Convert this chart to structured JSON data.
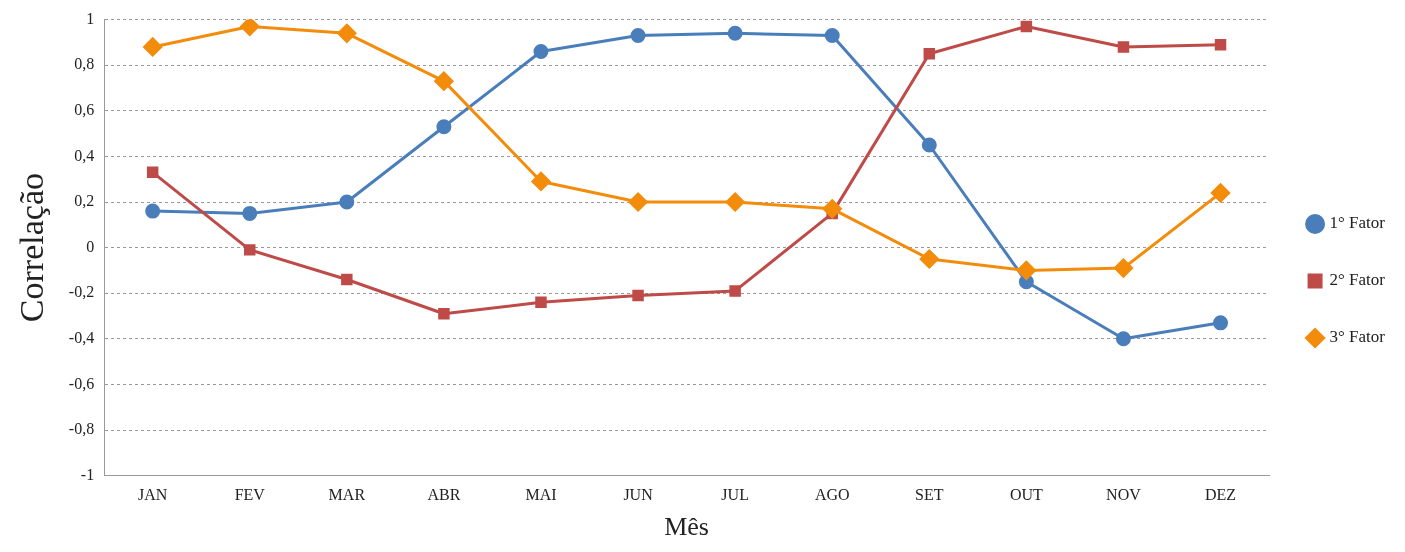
{
  "chart_data": {
    "type": "line",
    "xlabel": "Mês",
    "ylabel": "Correlação",
    "categories": [
      "JAN",
      "FEV",
      "MAR",
      "ABR",
      "MAI",
      "JUN",
      "JUL",
      "AGO",
      "SET",
      "OUT",
      "NOV",
      "DEZ"
    ],
    "series": [
      {
        "name": "1° Fator",
        "color": "#4a7ebb",
        "marker": "circle",
        "values": [
          0.16,
          0.15,
          0.2,
          0.53,
          0.86,
          0.93,
          0.94,
          0.93,
          0.45,
          -0.15,
          -0.4,
          -0.33
        ]
      },
      {
        "name": "2° Fator",
        "color": "#be4b48",
        "marker": "square",
        "values": [
          0.33,
          -0.01,
          -0.14,
          -0.29,
          -0.24,
          -0.21,
          -0.19,
          0.15,
          0.85,
          0.97,
          0.88,
          0.89
        ]
      },
      {
        "name": "3° Fator",
        "color": "#f38b0b",
        "marker": "diamond",
        "values": [
          0.88,
          0.97,
          0.94,
          0.73,
          0.29,
          0.2,
          0.2,
          0.17,
          -0.05,
          -0.1,
          -0.09,
          0.24
        ]
      }
    ],
    "ylim": [
      -1,
      1
    ],
    "yticks": [
      {
        "value": -1,
        "label": "-1"
      },
      {
        "value": -0.8,
        "label": "-0,8"
      },
      {
        "value": -0.6,
        "label": "-0,6"
      },
      {
        "value": -0.4,
        "label": "-0,4"
      },
      {
        "value": -0.2,
        "label": "-0,2"
      },
      {
        "value": 0,
        "label": "0"
      },
      {
        "value": 0.2,
        "label": "0,2"
      },
      {
        "value": 0.4,
        "label": "0,4"
      },
      {
        "value": 0.6,
        "label": "0,6"
      },
      {
        "value": 0.8,
        "label": "0,8"
      },
      {
        "value": 1,
        "label": "1"
      }
    ],
    "grid": "y",
    "legend": "right",
    "line_style": "solid"
  }
}
